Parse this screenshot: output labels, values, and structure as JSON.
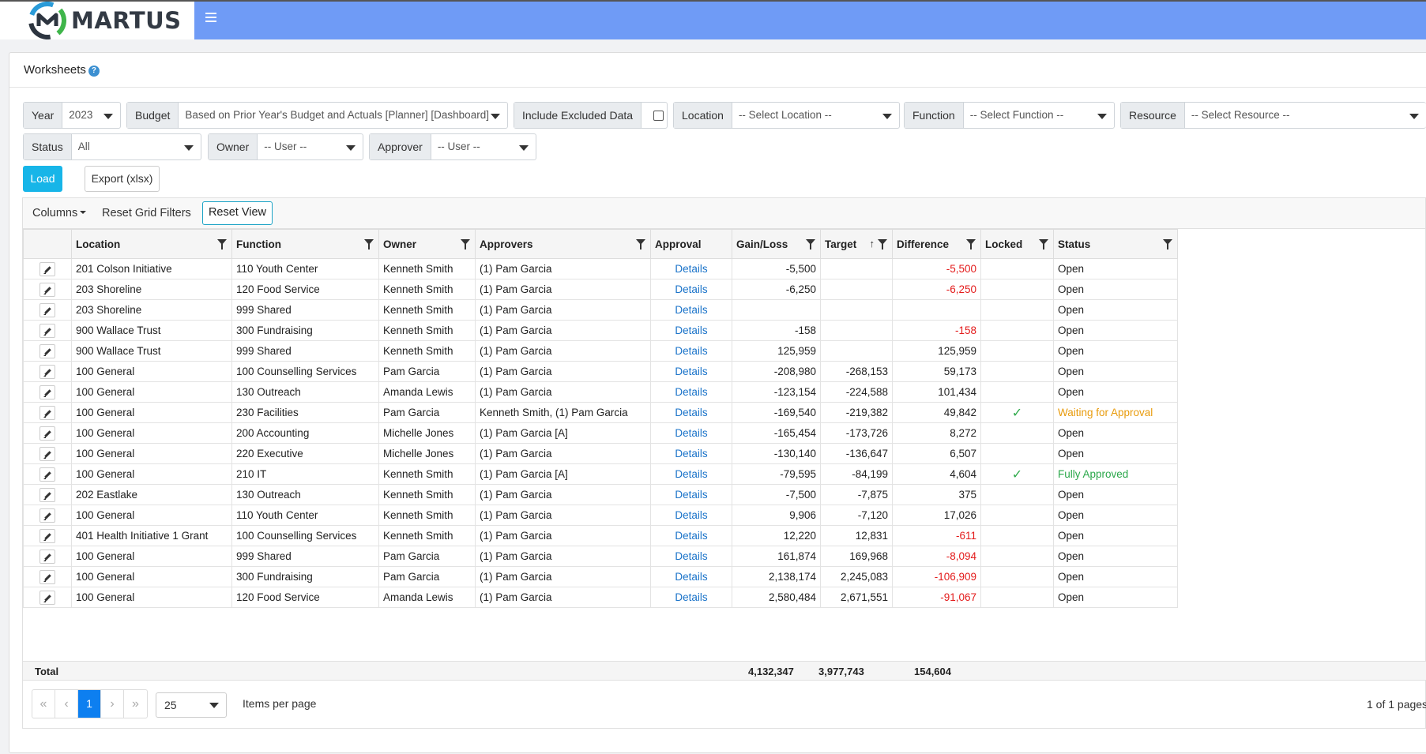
{
  "brand": {
    "name": "MARTUS"
  },
  "page": {
    "title": "Worksheets",
    "help": "?"
  },
  "filters": {
    "year": {
      "label": "Year",
      "value": "2023"
    },
    "budget": {
      "label": "Budget",
      "value": "Based on Prior Year's Budget and Actuals [Planner] [Dashboard]"
    },
    "excluded": {
      "label": "Include Excluded Data",
      "checked": false
    },
    "location": {
      "label": "Location",
      "value": "-- Select Location --"
    },
    "function": {
      "label": "Function",
      "value": "-- Select Function --"
    },
    "resource": {
      "label": "Resource",
      "value": "-- Select Resource --"
    },
    "status": {
      "label": "Status",
      "value": "All"
    },
    "owner": {
      "label": "Owner",
      "value": "-- User --"
    },
    "approver": {
      "label": "Approver",
      "value": "-- User --"
    }
  },
  "actions": {
    "load": "Load",
    "export": "Export (xlsx)"
  },
  "toolbar": {
    "columns": "Columns",
    "reset_filters": "Reset Grid Filters",
    "reset_view": "Reset View"
  },
  "grid": {
    "columns": [
      "Location",
      "Function",
      "Owner",
      "Approvers",
      "Approval",
      "Gain/Loss",
      "Target",
      "Difference",
      "Locked",
      "Status"
    ],
    "rows": [
      [
        "201 Colson Initiative",
        "110 Youth Center",
        "Kenneth Smith",
        "(1) Pam Garcia",
        "Details",
        "-5,500",
        "",
        "-5,500",
        "",
        "Open"
      ],
      [
        "203 Shoreline",
        "120 Food Service",
        "Kenneth Smith",
        "(1) Pam Garcia",
        "Details",
        "-6,250",
        "",
        "-6,250",
        "",
        "Open"
      ],
      [
        "203 Shoreline",
        "999 Shared",
        "Kenneth Smith",
        "(1) Pam Garcia",
        "Details",
        "",
        "",
        "",
        "",
        "Open"
      ],
      [
        "900 Wallace Trust",
        "300 Fundraising",
        "Kenneth Smith",
        "(1) Pam Garcia",
        "Details",
        "-158",
        "",
        "-158",
        "",
        "Open"
      ],
      [
        "900 Wallace Trust",
        "999 Shared",
        "Kenneth Smith",
        "(1) Pam Garcia",
        "Details",
        "125,959",
        "",
        "125,959",
        "",
        "Open"
      ],
      [
        "100 General",
        "100 Counselling Services",
        "Pam Garcia",
        "(1) Pam Garcia",
        "Details",
        "-208,980",
        "-268,153",
        "59,173",
        "",
        "Open"
      ],
      [
        "100 General",
        "130 Outreach",
        "Amanda Lewis",
        "(1) Pam Garcia",
        "Details",
        "-123,154",
        "-224,588",
        "101,434",
        "",
        "Open"
      ],
      [
        "100 General",
        "230 Facilities",
        "Pam Garcia",
        "Kenneth Smith, (1) Pam Garcia",
        "Details",
        "-169,540",
        "-219,382",
        "49,842",
        "✓",
        "Waiting for Approval"
      ],
      [
        "100 General",
        "200 Accounting",
        "Michelle Jones",
        "(1) Pam Garcia [A]",
        "Details",
        "-165,454",
        "-173,726",
        "8,272",
        "",
        "Open"
      ],
      [
        "100 General",
        "220 Executive",
        "Michelle Jones",
        "(1) Pam Garcia",
        "Details",
        "-130,140",
        "-136,647",
        "6,507",
        "",
        "Open"
      ],
      [
        "100 General",
        "210 IT",
        "Kenneth Smith",
        "(1) Pam Garcia [A]",
        "Details",
        "-79,595",
        "-84,199",
        "4,604",
        "✓",
        "Fully Approved"
      ],
      [
        "202 Eastlake",
        "130 Outreach",
        "Kenneth Smith",
        "(1) Pam Garcia",
        "Details",
        "-7,500",
        "-7,875",
        "375",
        "",
        "Open"
      ],
      [
        "100 General",
        "110 Youth Center",
        "Kenneth Smith",
        "(1) Pam Garcia",
        "Details",
        "9,906",
        "-7,120",
        "17,026",
        "",
        "Open"
      ],
      [
        "401 Health Initiative 1 Grant",
        "100 Counselling Services",
        "Kenneth Smith",
        "(1) Pam Garcia",
        "Details",
        "12,220",
        "12,831",
        "-611",
        "",
        "Open"
      ],
      [
        "100 General",
        "999 Shared",
        "Pam Garcia",
        "(1) Pam Garcia",
        "Details",
        "161,874",
        "169,968",
        "-8,094",
        "",
        "Open"
      ],
      [
        "100 General",
        "300 Fundraising",
        "Pam Garcia",
        "(1) Pam Garcia",
        "Details",
        "2,138,174",
        "2,245,083",
        "-106,909",
        "",
        "Open"
      ],
      [
        "100 General",
        "120 Food Service",
        "Amanda Lewis",
        "(1) Pam Garcia",
        "Details",
        "2,580,484",
        "2,671,551",
        "-91,067",
        "",
        "Open"
      ]
    ]
  },
  "totals": {
    "label": "Total",
    "gain_loss": "4,132,347",
    "target": "3,977,743",
    "difference": "154,604"
  },
  "pager": {
    "first": "«",
    "prev": "‹",
    "current": "1",
    "next": "›",
    "last": "»",
    "page_size": "25",
    "items_per_page": "Items per page",
    "info": "1 of 1 pages"
  },
  "colors": {
    "accent": "#17b5e8",
    "topbar": "#6f9bf6",
    "negative": "#e31b1b",
    "waiting": "#e89b0c",
    "approved": "#2aa74a",
    "link": "#1a73c9"
  }
}
